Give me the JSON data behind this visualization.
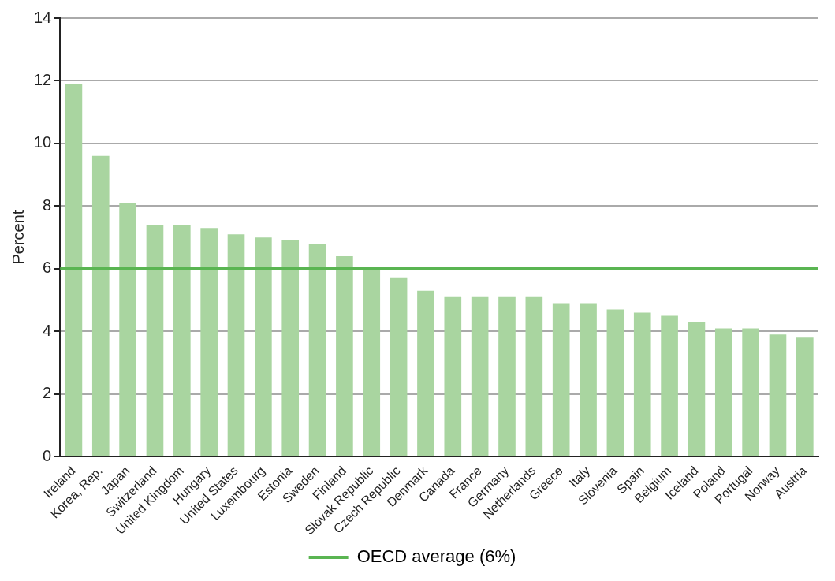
{
  "chart_data": {
    "type": "bar",
    "ylabel": "Percent",
    "categories": [
      "Ireland",
      "Korea, Rep.",
      "Japan",
      "Switzerland",
      "United Kingdom",
      "Hungary",
      "United States",
      "Luxembourg",
      "Estonia",
      "Sweden",
      "Finland",
      "Slovak Republic",
      "Czech Republic",
      "Denmark",
      "Canada",
      "France",
      "Germany",
      "Netherlands",
      "Greece",
      "Italy",
      "Slovenia",
      "Spain",
      "Belgium",
      "Iceland",
      "Poland",
      "Portugal",
      "Norway",
      "Austria"
    ],
    "values": [
      11.9,
      9.6,
      8.1,
      7.4,
      7.4,
      7.3,
      7.1,
      7.0,
      6.9,
      6.8,
      6.4,
      6.0,
      5.7,
      5.3,
      5.1,
      5.1,
      5.1,
      5.1,
      4.9,
      4.9,
      4.7,
      4.6,
      4.5,
      4.3,
      4.1,
      4.1,
      3.9,
      3.8
    ],
    "color": "#a9d5a0",
    "ylim": [
      0,
      14
    ],
    "yticks": [
      0,
      2,
      4,
      6,
      8,
      10,
      12,
      14
    ],
    "grid": "y",
    "legend": "bottom",
    "ref_lines": [
      {
        "axis": "y",
        "value": 6,
        "label": "OECD average (6%)",
        "color": "#5ab552",
        "line_style": "solid"
      }
    ]
  }
}
